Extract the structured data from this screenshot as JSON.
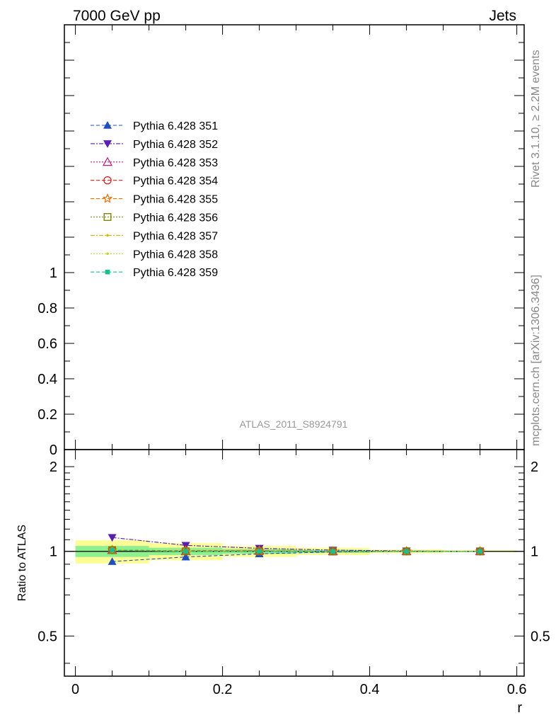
{
  "header": {
    "left": "7000 GeV pp",
    "right": "Jets"
  },
  "side_labels": {
    "rivet": "Rivet 3.1.10, ≥ 2.2M events",
    "mcplots": "mcplots.cern.ch [arXiv:1306.3436]"
  },
  "watermark": "ATLAS_2011_S8924791",
  "chart_data": [
    {
      "type": "line",
      "panel": "main",
      "yticks": [
        "0",
        "0.2",
        "0.4",
        "0.6",
        "0.8",
        "1"
      ],
      "ylim": [
        0,
        2.4
      ],
      "legend_placement": "top-left",
      "series": [
        {
          "name": "Pythia 6.428 351",
          "color": "#1f4fbf",
          "marker": "triangle-up"
        },
        {
          "name": "Pythia 6.428 352",
          "color": "#5a1fb0",
          "marker": "triangle-down"
        },
        {
          "name": "Pythia 6.428 353",
          "color": "#c2187a",
          "marker": "triangle-up-open"
        },
        {
          "name": "Pythia 6.428 354",
          "color": "#d81b1b",
          "marker": "circle-open"
        },
        {
          "name": "Pythia 6.428 355",
          "color": "#ef6c00",
          "marker": "star-open"
        },
        {
          "name": "Pythia 6.428 356",
          "color": "#7a8a00",
          "marker": "square-open"
        },
        {
          "name": "Pythia 6.428 357",
          "color": "#d4b800",
          "marker": "dot"
        },
        {
          "name": "Pythia 6.428 358",
          "color": "#b8dc1e",
          "marker": "dot"
        },
        {
          "name": "Pythia 6.428 359",
          "color": "#1abf8a",
          "marker": "square"
        }
      ]
    },
    {
      "type": "line",
      "panel": "ratio",
      "ylabel": "Ratio to ATLAS",
      "xlabel": "r",
      "xlim": [
        -0.015,
        0.61
      ],
      "xticks": [
        "0",
        "0.2",
        "0.4",
        "0.6"
      ],
      "yticks": [
        "0.5",
        "1",
        "2"
      ],
      "ylim": [
        0.36,
        2.3
      ],
      "ylog": true,
      "x": [
        0.05,
        0.15,
        0.25,
        0.35,
        0.45,
        0.55
      ],
      "band_yellow_half": [
        0.095,
        0.07,
        0.045,
        0.03,
        0.015,
        0.008
      ],
      "band_green_half": [
        0.045,
        0.03,
        0.02,
        0.012,
        0.006,
        0.004
      ],
      "series_values": [
        [
          0.92,
          0.955,
          0.98,
          0.995,
          1.0,
          1.0
        ],
        [
          1.12,
          1.05,
          1.025,
          1.01,
          1.003,
          1.0
        ],
        [
          1.01,
          1.0,
          1.005,
          1.0,
          1.0,
          1.0
        ],
        [
          1.01,
          1.005,
          1.005,
          1.0,
          1.0,
          1.0
        ],
        [
          1.01,
          1.005,
          1.005,
          1.0,
          1.0,
          1.0
        ],
        [
          1.01,
          1.0,
          1.0,
          1.0,
          1.0,
          1.0
        ],
        [
          1.01,
          1.0,
          1.0,
          1.0,
          1.0,
          1.0
        ],
        [
          1.01,
          1.0,
          1.0,
          1.0,
          1.0,
          1.0
        ],
        [
          1.01,
          1.0,
          1.0,
          1.0,
          1.0,
          1.0
        ]
      ]
    }
  ]
}
